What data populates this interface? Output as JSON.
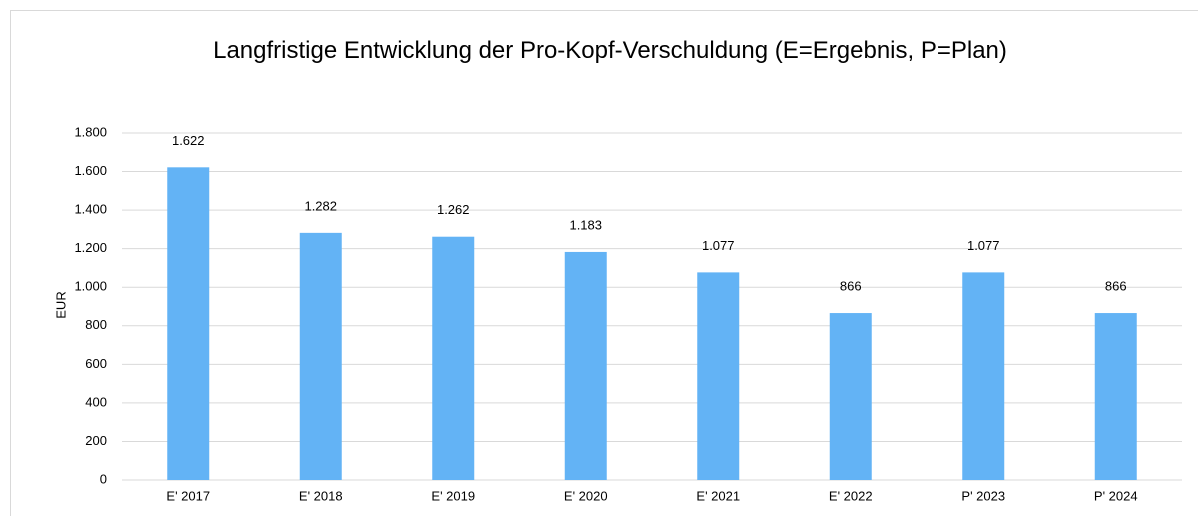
{
  "chart_data": {
    "type": "bar",
    "title": "Langfristige Entwicklung der Pro-Kopf-Verschuldung (E=Ergebnis, P=Plan)",
    "y_label": "EUR",
    "categories": [
      "E' 2017",
      "E' 2018",
      "E' 2019",
      "E' 2020",
      "E' 2021",
      "E' 2022",
      "P' 2023",
      "P' 2024"
    ],
    "values": [
      1622,
      1282,
      1262,
      1183,
      1077,
      866,
      1077,
      866
    ],
    "value_labels": [
      "1.622",
      "1.282",
      "1.262",
      "1.183",
      "1.077",
      "866",
      "1.077",
      "866"
    ],
    "color": "#63b3f5",
    "ylim": [
      0,
      1800
    ],
    "yticks": [
      0,
      200,
      400,
      600,
      800,
      {
        "value": 1000,
        "label": "1.000"
      },
      {
        "value": 1200,
        "label": "1.200"
      },
      {
        "value": 1400,
        "label": "1.400"
      },
      {
        "value": 1600,
        "label": "1.600"
      },
      {
        "value": 1800,
        "label": "1.800"
      }
    ],
    "grid": true
  }
}
